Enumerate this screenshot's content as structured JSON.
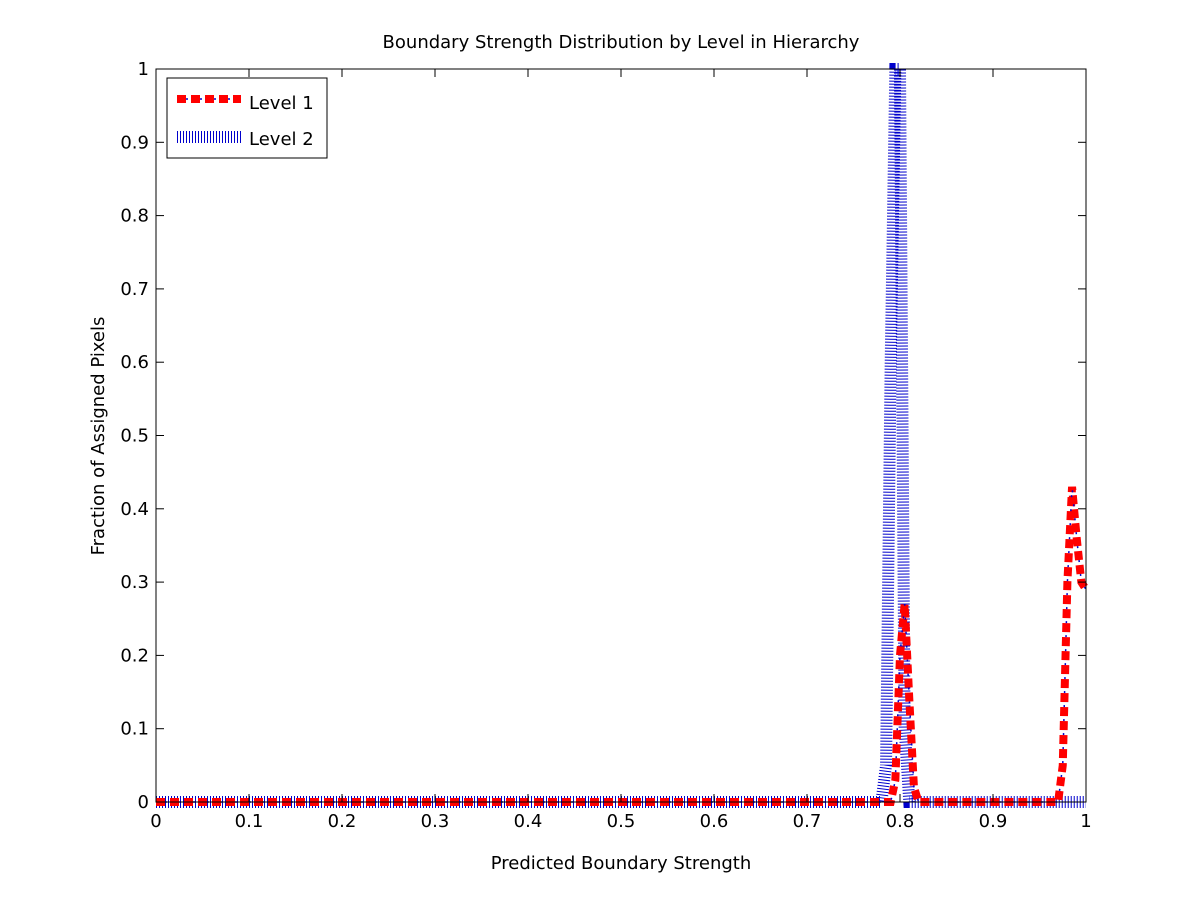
{
  "chart_data": {
    "type": "line",
    "title": "Boundary Strength Distribution by Level in Hierarchy",
    "xlabel": "Predicted Boundary Strength",
    "ylabel": "Fraction of Assigned Pixels",
    "xlim": [
      0,
      1
    ],
    "ylim": [
      0,
      1
    ],
    "xticks": [
      0,
      0.1,
      0.2,
      0.3,
      0.4,
      0.5,
      0.6,
      0.7,
      0.8,
      0.9,
      1
    ],
    "xtick_labels": [
      "0",
      "0.1",
      "0.2",
      "0.3",
      "0.4",
      "0.5",
      "0.6",
      "0.7",
      "0.8",
      "0.9",
      "1"
    ],
    "yticks": [
      0,
      0.1,
      0.2,
      0.3,
      0.4,
      0.5,
      0.6,
      0.7,
      0.8,
      0.9,
      1
    ],
    "ytick_labels": [
      "0",
      "0.1",
      "0.2",
      "0.3",
      "0.4",
      "0.5",
      "0.6",
      "0.7",
      "0.8",
      "0.9",
      "1"
    ],
    "grid": false,
    "legend_position": "top-left",
    "series": [
      {
        "name": "Level 1",
        "color": "#ff0000",
        "accent_color": "#0000cc",
        "style": "dash-dot-thick",
        "x": [
          0,
          0.79,
          0.795,
          0.8,
          0.805,
          0.81,
          0.815,
          0.82,
          0.97,
          0.975,
          0.98,
          0.985,
          0.99,
          0.995,
          1
        ],
        "y": [
          0,
          0,
          0.03,
          0.2,
          0.27,
          0.14,
          0.02,
          0,
          0,
          0.05,
          0.3,
          0.43,
          0.36,
          0.3,
          0.29
        ]
      },
      {
        "name": "Level 2",
        "color": "#0000cc",
        "style": "dotted",
        "x": [
          0,
          0.78,
          0.785,
          0.79,
          0.795,
          0.8,
          0.805,
          0.81,
          0.82,
          1
        ],
        "y": [
          0,
          0,
          0.05,
          0.6,
          1.0,
          1.0,
          0.1,
          0,
          0,
          0
        ]
      }
    ]
  }
}
